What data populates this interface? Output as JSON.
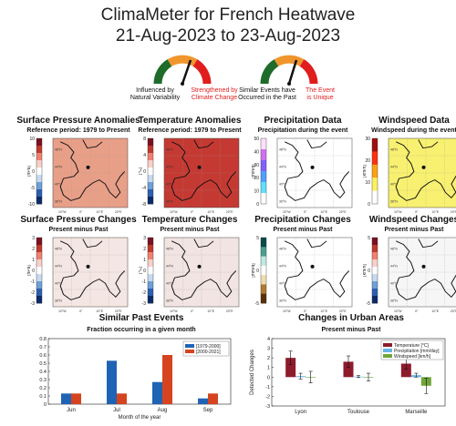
{
  "header": {
    "title_line1": "ClimaMeter for French Heatwave",
    "title_line2": "21-Aug-2023 to 23-Aug-2023"
  },
  "gauges": [
    {
      "left_label": "Influenced by\nNatural Variability",
      "right_label": "Strengthened by\nClimate Change",
      "needle_level": 0.62
    },
    {
      "left_label": "Similar Events have\nOccurred in the Past",
      "right_label": "The Event\nis Unique",
      "needle_level": 0.6
    }
  ],
  "maps_row1": [
    {
      "title": "Surface Pressure Anomalies",
      "subtitle": "Reference period: 1979 to Present",
      "unit": "[hPa]",
      "ticks": [
        "10",
        "5",
        "0",
        "-5",
        "-10"
      ],
      "palette": "diverging-blue-red",
      "fill": "#e89f88"
    },
    {
      "title": "Temperature Anomalies",
      "subtitle": "Reference period: 1979 to Present",
      "unit": "[°C]",
      "ticks": [
        "8",
        "4",
        "0",
        "-4",
        "-8"
      ],
      "palette": "diverging-blue-red",
      "fill": "#c43a33"
    },
    {
      "title": "Precipitation Data",
      "subtitle": "Precipitation during the event",
      "unit": "[mm/d]",
      "ticks": [
        "50",
        "40",
        "30",
        "20",
        "10",
        "0"
      ],
      "palette": "precip",
      "fill": "#ffffff"
    },
    {
      "title": "Windspeed Data",
      "subtitle": "Windspeed during the event",
      "unit": "[km/h]",
      "ticks": [
        "30",
        "20",
        "10",
        "0"
      ],
      "palette": "wind",
      "fill": "#f8f070"
    }
  ],
  "maps_row2": [
    {
      "title": "Surface Pressure Changes",
      "subtitle": "Present minus Past",
      "unit": "[hPa]",
      "ticks": [
        "3",
        "2",
        "1",
        "0",
        "-1",
        "-2",
        "-3"
      ],
      "palette": "diverging-blue-red",
      "fill": "#f4e6e2"
    },
    {
      "title": "Temperature Changes",
      "subtitle": "Present minus Past",
      "unit": "[°C]",
      "ticks": [
        "3",
        "2",
        "1",
        "0",
        "-1",
        "-2",
        "-3"
      ],
      "palette": "diverging-blue-red",
      "fill": "#f1e4e2"
    },
    {
      "title": "Precipitation Changes",
      "subtitle": "Present minus Past",
      "unit": "[mm/d]",
      "ticks": [
        "5",
        "",
        "0",
        "",
        "-5"
      ],
      "palette": "brown-green",
      "fill": "#ffffff"
    },
    {
      "title": "Windspeed Changes",
      "subtitle": "Present minus Past",
      "unit": "[km/h]",
      "ticks": [
        "5",
        "",
        "0",
        "",
        "-5"
      ],
      "palette": "diverging-blue-red",
      "fill": "#f6f6f6"
    }
  ],
  "map_axis": {
    "lat_ticks": [
      "48°N",
      "44°N",
      "40°N",
      "36°N"
    ],
    "lon_ticks": [
      "10°W",
      "0°",
      "10°E",
      "20°E"
    ]
  },
  "chart_data": [
    {
      "type": "bar",
      "title": "Similar Past Events",
      "subtitle": "Fraction occurring in a given month",
      "xlabel": "Month of the year",
      "ylabel": "",
      "categories": [
        "Jun",
        "Jul",
        "Aug",
        "Sep"
      ],
      "series": [
        {
          "name": "[1979-2000]",
          "color": "#1f63b5",
          "values": [
            0.13,
            0.53,
            0.27,
            0.07
          ]
        },
        {
          "name": "[2000-2021]",
          "color": "#d5441f",
          "values": [
            0.13,
            0.13,
            0.6,
            0.13
          ]
        }
      ],
      "ylim": [
        0,
        0.8
      ],
      "yticks": [
        "0",
        "0.1",
        "0.2",
        "0.3",
        "0.4",
        "0.5",
        "0.6",
        "0.7",
        "0.8"
      ],
      "legend_position": "top-right",
      "grid": false
    },
    {
      "type": "bar",
      "title": "Changes in Urban Areas",
      "subtitle": "Present minus Past",
      "xlabel": "",
      "ylabel": "Detected Changes",
      "categories": [
        "Lyon",
        "Toulouse",
        "Marseille"
      ],
      "series": [
        {
          "name": "Temperature [°C]",
          "color": "#8e1b2c",
          "values": [
            2.0,
            1.6,
            1.4
          ],
          "err": [
            0.7,
            0.6,
            0.6
          ]
        },
        {
          "name": "Precipitation [mm/day]",
          "color": "#6ab4e8",
          "values": [
            0.1,
            0.05,
            0.2
          ],
          "err": [
            0.3,
            0.1,
            0.2
          ]
        },
        {
          "name": "Windspeed [km/h]",
          "color": "#6fa53a",
          "values": [
            0.0,
            0.0,
            -0.9
          ],
          "err": [
            0.6,
            0.4,
            0.8
          ]
        }
      ],
      "ylim": [
        -3,
        4
      ],
      "yticks": [
        "4",
        "3",
        "2",
        "1",
        "0",
        "-1",
        "-2",
        "-3"
      ],
      "legend_position": "top-right",
      "grid": false
    }
  ]
}
